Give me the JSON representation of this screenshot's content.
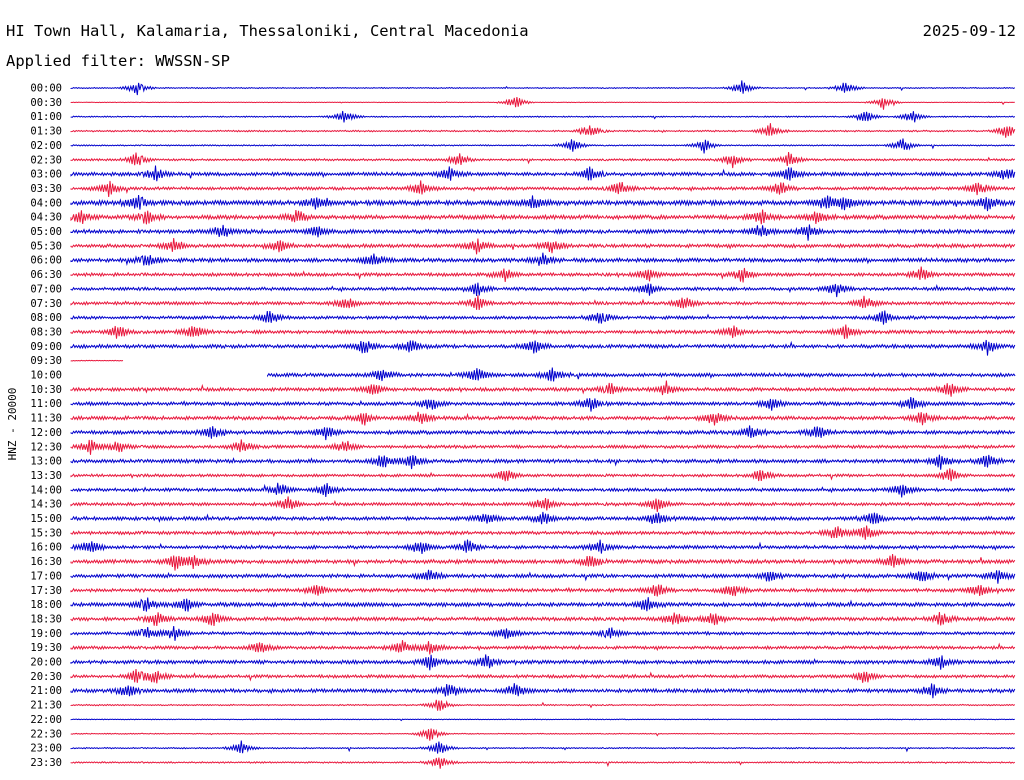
{
  "header": {
    "station": "HI Town Hall, Kalamaria, Thessaloniki, Central Macedonia",
    "date": "2025-09-12",
    "filter": "Applied filter: WWSSN-SP"
  },
  "chart_data": {
    "type": "line",
    "title": "HI Town Hall, Kalamaria, Thessaloniki, Central Macedonia",
    "subtitle": "Applied filter: WWSSN-SP",
    "date": "2025-09-12",
    "ylabel": "HNZ - 20000",
    "colors": {
      "even_hour": "#0000cc",
      "half_hour": "#e8173c"
    },
    "rows": [
      {
        "label": "00:00",
        "start": 0,
        "end": 1,
        "amp": 0.4,
        "events": [
          0.07,
          0.71,
          0.82
        ]
      },
      {
        "label": "00:30",
        "start": 0,
        "end": 1,
        "amp": 0.2,
        "events": [
          0.47,
          0.86
        ]
      },
      {
        "label": "01:00",
        "start": 0,
        "end": 1,
        "amp": 0.5,
        "events": [
          0.29,
          0.84,
          0.89
        ]
      },
      {
        "label": "01:30",
        "start": 0,
        "end": 1,
        "amp": 0.6,
        "events": [
          0.55,
          0.74,
          0.99
        ]
      },
      {
        "label": "02:00",
        "start": 0,
        "end": 1,
        "amp": 0.5,
        "events": [
          0.53,
          0.67,
          0.88
        ]
      },
      {
        "label": "02:30",
        "start": 0,
        "end": 1,
        "amp": 0.8,
        "events": [
          0.07,
          0.41,
          0.7,
          0.76
        ]
      },
      {
        "label": "03:00",
        "start": 0,
        "end": 1,
        "amp": 1.4,
        "events": [
          0.09,
          0.4,
          0.55,
          0.76,
          0.99
        ]
      },
      {
        "label": "03:30",
        "start": 0,
        "end": 1,
        "amp": 1.2,
        "events": [
          0.04,
          0.37,
          0.58,
          0.75,
          0.96
        ]
      },
      {
        "label": "04:00",
        "start": 0,
        "end": 1,
        "amp": 1.8,
        "events": [
          0.07,
          0.26,
          0.49,
          0.8,
          0.82,
          0.97
        ]
      },
      {
        "label": "04:30",
        "start": 0,
        "end": 1,
        "amp": 1.6,
        "events": [
          0.01,
          0.08,
          0.24,
          0.73,
          0.79
        ]
      },
      {
        "label": "05:00",
        "start": 0,
        "end": 1,
        "amp": 1.5,
        "events": [
          0.16,
          0.26,
          0.73,
          0.78
        ]
      },
      {
        "label": "05:30",
        "start": 0,
        "end": 1,
        "amp": 1.4,
        "events": [
          0.11,
          0.22,
          0.43,
          0.51
        ]
      },
      {
        "label": "06:00",
        "start": 0,
        "end": 1,
        "amp": 1.5,
        "events": [
          0.08,
          0.32,
          0.5
        ]
      },
      {
        "label": "06:30",
        "start": 0,
        "end": 1,
        "amp": 1.3,
        "events": [
          0.46,
          0.61,
          0.71,
          0.9
        ]
      },
      {
        "label": "07:00",
        "start": 0,
        "end": 1,
        "amp": 1.2,
        "events": [
          0.43,
          0.61,
          0.81
        ]
      },
      {
        "label": "07:30",
        "start": 0,
        "end": 1,
        "amp": 1.2,
        "events": [
          0.29,
          0.43,
          0.65,
          0.84
        ]
      },
      {
        "label": "08:00",
        "start": 0,
        "end": 1,
        "amp": 1.2,
        "events": [
          0.21,
          0.56,
          0.86
        ]
      },
      {
        "label": "08:30",
        "start": 0,
        "end": 1,
        "amp": 1.3,
        "events": [
          0.05,
          0.13,
          0.7,
          0.82
        ]
      },
      {
        "label": "09:00",
        "start": 0,
        "end": 1,
        "amp": 1.4,
        "events": [
          0.31,
          0.36,
          0.49,
          0.97
        ]
      },
      {
        "label": "09:30",
        "start": 0,
        "end": 0.056,
        "amp": 0.3,
        "events": []
      },
      {
        "label": "10:00",
        "start": 0.208,
        "end": 1,
        "amp": 1.4,
        "events": [
          0.33,
          0.43,
          0.51
        ]
      },
      {
        "label": "10:30",
        "start": 0,
        "end": 1,
        "amp": 1.3,
        "events": [
          0.32,
          0.57,
          0.63,
          0.93
        ]
      },
      {
        "label": "11:00",
        "start": 0,
        "end": 1,
        "amp": 1.3,
        "events": [
          0.38,
          0.55,
          0.74,
          0.89
        ]
      },
      {
        "label": "11:30",
        "start": 0,
        "end": 1,
        "amp": 1.4,
        "events": [
          0.31,
          0.37,
          0.68,
          0.9
        ]
      },
      {
        "label": "12:00",
        "start": 0,
        "end": 1,
        "amp": 1.4,
        "events": [
          0.15,
          0.27,
          0.72,
          0.79
        ]
      },
      {
        "label": "12:30",
        "start": 0,
        "end": 1,
        "amp": 1.2,
        "events": [
          0.02,
          0.05,
          0.18,
          0.29
        ]
      },
      {
        "label": "13:00",
        "start": 0,
        "end": 1,
        "amp": 1.4,
        "events": [
          0.33,
          0.36,
          0.92,
          0.97
        ]
      },
      {
        "label": "13:30",
        "start": 0,
        "end": 1,
        "amp": 1.1,
        "events": [
          0.46,
          0.73,
          0.93
        ]
      },
      {
        "label": "14:00",
        "start": 0,
        "end": 1,
        "amp": 1.2,
        "events": [
          0.22,
          0.27,
          0.88
        ]
      },
      {
        "label": "14:30",
        "start": 0,
        "end": 1,
        "amp": 1.2,
        "events": [
          0.23,
          0.5,
          0.62
        ]
      },
      {
        "label": "15:00",
        "start": 0,
        "end": 1,
        "amp": 1.4,
        "events": [
          0.44,
          0.5,
          0.62,
          0.85
        ]
      },
      {
        "label": "15:30",
        "start": 0,
        "end": 1,
        "amp": 1.3,
        "events": [
          0.81,
          0.84
        ]
      },
      {
        "label": "16:00",
        "start": 0,
        "end": 1,
        "amp": 1.3,
        "events": [
          0.02,
          0.37,
          0.42,
          0.56
        ]
      },
      {
        "label": "16:30",
        "start": 0,
        "end": 1,
        "amp": 1.5,
        "events": [
          0.11,
          0.13,
          0.55,
          0.87
        ]
      },
      {
        "label": "17:00",
        "start": 0,
        "end": 1,
        "amp": 1.4,
        "events": [
          0.38,
          0.74,
          0.9,
          0.98
        ]
      },
      {
        "label": "17:30",
        "start": 0,
        "end": 1,
        "amp": 1.3,
        "events": [
          0.26,
          0.62,
          0.7,
          0.96
        ]
      },
      {
        "label": "18:00",
        "start": 0,
        "end": 1,
        "amp": 1.5,
        "events": [
          0.08,
          0.12,
          0.61
        ]
      },
      {
        "label": "18:30",
        "start": 0,
        "end": 1,
        "amp": 1.4,
        "events": [
          0.09,
          0.15,
          0.64,
          0.68,
          0.92
        ]
      },
      {
        "label": "19:00",
        "start": 0,
        "end": 1,
        "amp": 1.2,
        "events": [
          0.08,
          0.11,
          0.46,
          0.57
        ]
      },
      {
        "label": "19:30",
        "start": 0,
        "end": 1,
        "amp": 1.2,
        "events": [
          0.2,
          0.35,
          0.38
        ]
      },
      {
        "label": "20:00",
        "start": 0,
        "end": 1,
        "amp": 1.4,
        "events": [
          0.38,
          0.44,
          0.92
        ]
      },
      {
        "label": "20:30",
        "start": 0,
        "end": 1,
        "amp": 1.2,
        "events": [
          0.07,
          0.09,
          0.84
        ]
      },
      {
        "label": "21:00",
        "start": 0,
        "end": 1,
        "amp": 1.4,
        "events": [
          0.06,
          0.4,
          0.47,
          0.91
        ]
      },
      {
        "label": "21:30",
        "start": 0,
        "end": 1,
        "amp": 0.5,
        "events": [
          0.39
        ]
      },
      {
        "label": "22:00",
        "start": 0,
        "end": 1,
        "amp": 0.3,
        "events": []
      },
      {
        "label": "22:30",
        "start": 0,
        "end": 1,
        "amp": 0.4,
        "events": [
          0.38
        ]
      },
      {
        "label": "23:00",
        "start": 0,
        "end": 1,
        "amp": 0.5,
        "events": [
          0.18,
          0.39
        ]
      },
      {
        "label": "23:30",
        "start": 0,
        "end": 1,
        "amp": 0.6,
        "events": [
          0.39
        ]
      }
    ]
  }
}
